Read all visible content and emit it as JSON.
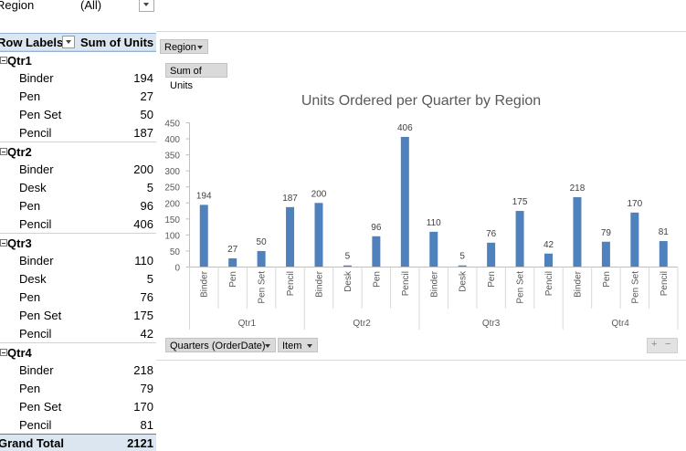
{
  "report_filter": {
    "label": "Region",
    "value": "(All)"
  },
  "pivot": {
    "row_labels_header": "Row Labels",
    "values_header": "Sum of Units",
    "groups": [
      {
        "name": "Qtr1",
        "items": [
          {
            "item": "Binder",
            "units": "194"
          },
          {
            "item": "Pen",
            "units": "27"
          },
          {
            "item": "Pen Set",
            "units": "50"
          },
          {
            "item": "Pencil",
            "units": "187"
          }
        ]
      },
      {
        "name": "Qtr2",
        "items": [
          {
            "item": "Binder",
            "units": "200"
          },
          {
            "item": "Desk",
            "units": "5"
          },
          {
            "item": "Pen",
            "units": "96"
          },
          {
            "item": "Pencil",
            "units": "406"
          }
        ]
      },
      {
        "name": "Qtr3",
        "items": [
          {
            "item": "Binder",
            "units": "110"
          },
          {
            "item": "Desk",
            "units": "5"
          },
          {
            "item": "Pen",
            "units": "76"
          },
          {
            "item": "Pen Set",
            "units": "175"
          },
          {
            "item": "Pencil",
            "units": "42"
          }
        ]
      },
      {
        "name": "Qtr4",
        "items": [
          {
            "item": "Binder",
            "units": "218"
          },
          {
            "item": "Pen",
            "units": "79"
          },
          {
            "item": "Pen Set",
            "units": "170"
          },
          {
            "item": "Pencil",
            "units": "81"
          }
        ]
      }
    ],
    "grand_total_label": "Grand Total",
    "grand_total_value": "2121"
  },
  "chart_buttons": {
    "region": "Region",
    "values": "Sum of Units",
    "axis_quarters": "Quarters (OrderDate)",
    "axis_item": "Item",
    "zoom_in": "+",
    "zoom_out": "−"
  },
  "chart_data": {
    "type": "bar",
    "title": "Units Ordered per Quarter by Region",
    "ylim": [
      0,
      450
    ],
    "yticks": [
      0,
      50,
      100,
      150,
      200,
      250,
      300,
      350,
      400,
      450
    ],
    "bar_color": "#4f81bd",
    "data_labels": true,
    "grid": false,
    "groups": [
      {
        "name": "Qtr1",
        "categories": [
          "Binder",
          "Pen",
          "Pen Set",
          "Pencil"
        ],
        "values": [
          194,
          27,
          50,
          187
        ]
      },
      {
        "name": "Qtr2",
        "categories": [
          "Binder",
          "Desk",
          "Pen",
          "Pencil"
        ],
        "values": [
          200,
          5,
          96,
          406
        ]
      },
      {
        "name": "Qtr3",
        "categories": [
          "Binder",
          "Desk",
          "Pen",
          "Pen Set",
          "Pencil"
        ],
        "values": [
          110,
          5,
          76,
          175,
          42
        ]
      },
      {
        "name": "Qtr4",
        "categories": [
          "Binder",
          "Pen",
          "Pen Set",
          "Pencil"
        ],
        "values": [
          218,
          79,
          170,
          81
        ]
      }
    ]
  }
}
